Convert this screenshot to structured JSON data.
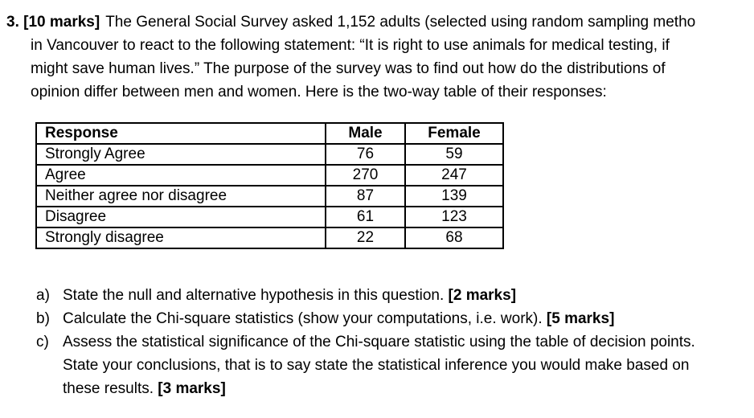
{
  "question": {
    "number_and_marks": "3. [10 marks]",
    "lines": [
      "The General Social Survey asked 1,152 adults (selected using random sampling metho",
      "in Vancouver to react to the following statement: “It is right to use animals for medical testing, if",
      "might save human lives.” The purpose of the survey was to find out how do the distributions of",
      "opinion differ between men and women. Here is the two-way table of their responses:"
    ]
  },
  "table": {
    "headers": [
      "Response",
      "Male",
      "Female"
    ],
    "rows": [
      [
        "Strongly Agree",
        "76",
        "59"
      ],
      [
        "Agree",
        "270",
        "247"
      ],
      [
        "Neither agree nor disagree",
        "87",
        "139"
      ],
      [
        "Disagree",
        "61",
        "123"
      ],
      [
        "Strongly disagree",
        "22",
        "68"
      ]
    ]
  },
  "subquestions": [
    {
      "marker": "a)",
      "text": "State the null and alternative hypothesis in this question. ",
      "marks": "[2 marks]"
    },
    {
      "marker": "b)",
      "text": "Calculate the Chi-square statistics (show your computations, i.e. work). ",
      "marks": "[5 marks]"
    },
    {
      "marker": "c)",
      "line1": "Assess the statistical significance of the Chi-square statistic using the table of decision points.",
      "line2": "State your conclusions, that is to say state the statistical inference you would make based on",
      "line3": "these results. ",
      "marks": "[3 marks]"
    }
  ]
}
